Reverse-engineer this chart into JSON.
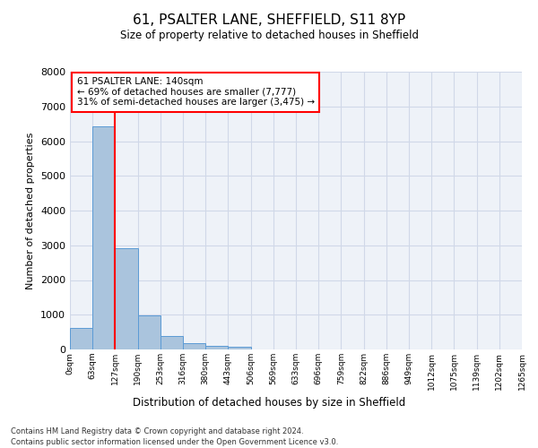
{
  "title": "61, PSALTER LANE, SHEFFIELD, S11 8YP",
  "subtitle": "Size of property relative to detached houses in Sheffield",
  "xlabel": "Distribution of detached houses by size in Sheffield",
  "ylabel": "Number of detached properties",
  "footnote1": "Contains HM Land Registry data © Crown copyright and database right 2024.",
  "footnote2": "Contains public sector information licensed under the Open Government Licence v3.0.",
  "bar_values": [
    620,
    6430,
    2920,
    990,
    380,
    170,
    100,
    70,
    0,
    0,
    0,
    0,
    0,
    0,
    0,
    0,
    0,
    0,
    0,
    0
  ],
  "bin_labels": [
    "0sqm",
    "63sqm",
    "127sqm",
    "190sqm",
    "253sqm",
    "316sqm",
    "380sqm",
    "443sqm",
    "506sqm",
    "569sqm",
    "633sqm",
    "696sqm",
    "759sqm",
    "822sqm",
    "886sqm",
    "949sqm",
    "1012sqm",
    "1075sqm",
    "1139sqm",
    "1202sqm",
    "1265sqm"
  ],
  "bar_color": "#aac4dd",
  "bar_edge_color": "#5b9bd5",
  "grid_color": "#d0d8e8",
  "bg_color": "#eef2f8",
  "red_line_x": 2,
  "annotation_text": "61 PSALTER LANE: 140sqm\n← 69% of detached houses are smaller (7,777)\n31% of semi-detached houses are larger (3,475) →",
  "ylim": [
    0,
    8000
  ],
  "yticks": [
    0,
    1000,
    2000,
    3000,
    4000,
    5000,
    6000,
    7000,
    8000
  ]
}
